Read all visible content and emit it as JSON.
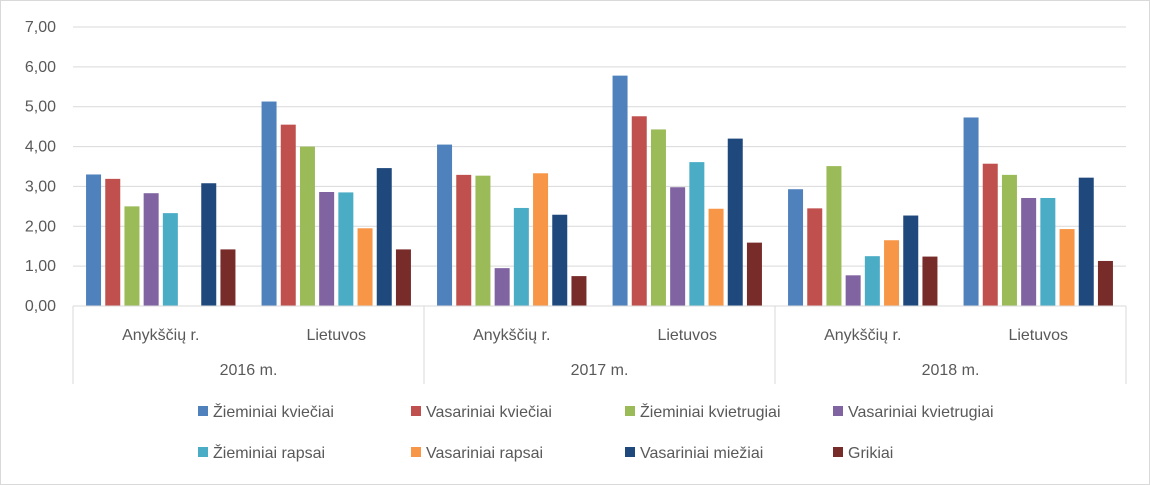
{
  "chart_data": {
    "type": "bar",
    "ylim": [
      0,
      7
    ],
    "y_ticks": [
      "0,00",
      "1,00",
      "2,00",
      "3,00",
      "4,00",
      "5,00",
      "6,00",
      "7,00"
    ],
    "y_tick_values": [
      0,
      1,
      2,
      3,
      4,
      5,
      6,
      7
    ],
    "grid": true,
    "legend_position": "bottom",
    "years": [
      "2016 m.",
      "2017 m.",
      "2018 m."
    ],
    "categories": [
      "Anykščių r.",
      "Lietuvos",
      "Anykščių r.",
      "Lietuvos",
      "Anykščių r.",
      "Lietuvos"
    ],
    "category_year_index": [
      0,
      0,
      1,
      1,
      2,
      2
    ],
    "series": [
      {
        "name": "Žieminiai kviečiai",
        "color": "#4f81bd",
        "values": [
          3.3,
          5.13,
          4.05,
          5.78,
          2.93,
          4.73
        ]
      },
      {
        "name": "Vasariniai kviečiai",
        "color": "#c0504d",
        "values": [
          3.19,
          4.55,
          3.29,
          4.76,
          2.45,
          3.57
        ]
      },
      {
        "name": "Žieminiai kvietrugiai",
        "color": "#9bbb59",
        "values": [
          2.5,
          4.0,
          3.27,
          4.43,
          3.51,
          3.29
        ]
      },
      {
        "name": "Vasariniai kvietrugiai",
        "color": "#8064a2",
        "values": [
          2.83,
          2.86,
          0.95,
          2.98,
          0.77,
          2.71
        ]
      },
      {
        "name": "Žieminiai rapsai",
        "color": "#4bacc6",
        "values": [
          2.33,
          2.85,
          2.46,
          3.61,
          1.25,
          2.71
        ]
      },
      {
        "name": "Vasariniai rapsai",
        "color": "#f79646",
        "values": [
          null,
          1.95,
          3.33,
          2.44,
          1.65,
          1.93
        ]
      },
      {
        "name": "Vasariniai miežiai",
        "color": "#1f497d",
        "values": [
          3.08,
          3.46,
          2.29,
          4.2,
          2.27,
          3.22
        ]
      },
      {
        "name": "Grikiai",
        "color": "#772c2a",
        "values": [
          1.42,
          1.42,
          0.75,
          1.59,
          1.24,
          1.13
        ]
      }
    ]
  }
}
